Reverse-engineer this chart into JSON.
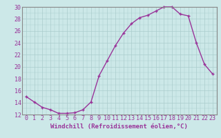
{
  "x": [
    0,
    1,
    2,
    3,
    4,
    5,
    6,
    7,
    8,
    9,
    10,
    11,
    12,
    13,
    14,
    15,
    16,
    17,
    18,
    19,
    20,
    21,
    22,
    23
  ],
  "y": [
    15,
    14.1,
    13.2,
    12.8,
    12.2,
    12.2,
    12.3,
    12.8,
    14.1,
    18.5,
    21.0,
    23.5,
    25.6,
    27.2,
    28.2,
    28.6,
    29.3,
    30.0,
    30.0,
    28.8,
    28.5,
    24.0,
    20.4,
    18.8
  ],
  "line_color": "#993399",
  "marker": "+",
  "bg_color": "#cce8e8",
  "grid_color": "#aacccc",
  "xlabel": "Windchill (Refroidissement éolien,°C)",
  "xlabel_fontsize": 6.5,
  "tick_fontsize": 6.0,
  "ylim": [
    12,
    30
  ],
  "yticks": [
    12,
    14,
    16,
    18,
    20,
    22,
    24,
    26,
    28,
    30
  ],
  "xticks": [
    0,
    1,
    2,
    3,
    4,
    5,
    6,
    7,
    8,
    9,
    10,
    11,
    12,
    13,
    14,
    15,
    16,
    17,
    18,
    19,
    20,
    21,
    22,
    23
  ],
  "spine_color": "#888888"
}
